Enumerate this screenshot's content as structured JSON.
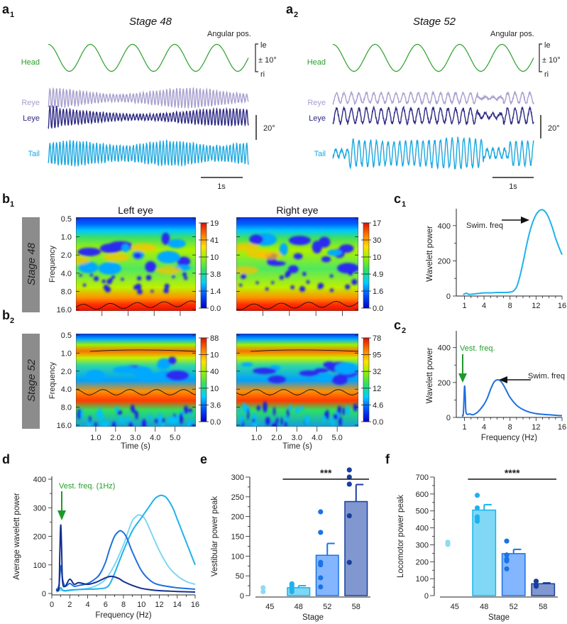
{
  "panel_a": [
    {
      "label": "a",
      "sub": "1",
      "title": "Stage 48",
      "angular_label": "Angular pos.",
      "scale_head": {
        "top": "le",
        "mid": "± 10°",
        "bottom": "ri"
      },
      "scale_eye": "20°",
      "time_bar": "1s",
      "traces": [
        {
          "name": "Head",
          "color": "#2aa02a"
        },
        {
          "name": "Reye",
          "color": "#a89fcf"
        },
        {
          "name": "Leye",
          "color": "#2e2a85"
        },
        {
          "name": "Tail",
          "color": "#1aa7e0"
        }
      ],
      "head_cycles": 5,
      "eye_freq_hz": 12,
      "tail_freq_hz": 12,
      "duration_s": 5
    },
    {
      "label": "a",
      "sub": "2",
      "title": "Stage 52",
      "angular_label": "Angular pos.",
      "scale_head": {
        "top": "le",
        "mid": "± 10°",
        "bottom": "ri"
      },
      "scale_eye": "20°",
      "time_bar": "1s",
      "traces": [
        {
          "name": "Head",
          "color": "#2aa02a"
        },
        {
          "name": "Reye",
          "color": "#a89fcf"
        },
        {
          "name": "Leye",
          "color": "#2e2a85"
        },
        {
          "name": "Tail",
          "color": "#1aa7e0"
        }
      ],
      "head_cycles": 5,
      "eye_freq_hz": 6,
      "tail_freq_hz": 6,
      "duration_s": 5
    }
  ],
  "panel_b": [
    {
      "label": "b",
      "sub": "1",
      "stage": "Stage 48",
      "heatmaps": [
        {
          "title": "Left eye",
          "colorbar": [
            "19",
            "41",
            "10",
            "3.8",
            "1.4",
            "0.0"
          ]
        },
        {
          "title": "Right eye",
          "colorbar": [
            "17",
            "30",
            "10",
            "4.9",
            "1.6",
            "0.0"
          ]
        }
      ],
      "ylabel": "Frequency",
      "yticks": [
        "0.5",
        "1.0",
        "2.0",
        "4.0",
        "8.0",
        "16.0"
      ],
      "dominant_band": "high"
    },
    {
      "label": "b",
      "sub": "2",
      "stage": "Stage 52",
      "heatmaps": [
        {
          "title": "",
          "colorbar": [
            "88",
            "10",
            "40",
            "10",
            "3.6",
            "0.0"
          ]
        },
        {
          "title": "",
          "colorbar": [
            "78",
            "95",
            "32",
            "12",
            "4.6",
            "0.0"
          ]
        }
      ],
      "ylabel": "Frequency",
      "yticks": [
        "0.5",
        "1.0",
        "2.0",
        "4.0",
        "8.0",
        "16.0"
      ],
      "xticks": [
        "1.0",
        "2.0",
        "3.0",
        "4.0",
        "5.0"
      ],
      "xlabel": "Time (s)",
      "dominant_band": "mid"
    }
  ],
  "chart_data": [
    {
      "id": "c1",
      "type": "line",
      "label": "c",
      "sub": "1",
      "xlabel": "",
      "ylabel": "Wavelett power",
      "xlim": [
        0.5,
        16
      ],
      "ylim": [
        0,
        480
      ],
      "xticks": [
        1,
        4,
        8,
        12,
        16
      ],
      "yticks": [
        0,
        200,
        400
      ],
      "annotation": "Swim. freq",
      "series": [
        {
          "name": "Stage 48",
          "color": "#1fb2ec",
          "x": [
            0.8,
            1.0,
            1.3,
            1.6,
            2,
            3,
            4,
            5,
            6,
            7,
            8,
            8.5,
            9,
            9.5,
            10,
            10.5,
            11,
            11.5,
            12,
            12.5,
            13,
            13.5,
            14,
            14.5,
            15,
            15.5,
            16
          ],
          "y": [
            8,
            12,
            16,
            10,
            10,
            14,
            18,
            18,
            20,
            20,
            22,
            28,
            50,
            110,
            190,
            280,
            360,
            420,
            462,
            485,
            490,
            475,
            440,
            390,
            330,
            280,
            235
          ]
        }
      ]
    },
    {
      "id": "c2",
      "type": "line",
      "label": "c",
      "sub": "2",
      "xlabel": "Frequency (Hz)",
      "ylabel": "Wavelett power",
      "xlim": [
        0.5,
        16
      ],
      "ylim": [
        0,
        480
      ],
      "xticks": [
        1,
        4,
        8,
        12,
        16
      ],
      "yticks": [
        0,
        200,
        400
      ],
      "annotations": [
        "Vest. freq.",
        "Swim. freq"
      ],
      "series": [
        {
          "name": "Stage 52",
          "color": "#1e6fe0",
          "x": [
            0.6,
            0.8,
            0.9,
            1.0,
            1.1,
            1.2,
            1.4,
            1.8,
            2.2,
            2.6,
            3,
            3.5,
            4,
            4.5,
            5,
            5.5,
            6,
            6.5,
            7,
            7.5,
            8,
            9,
            10,
            11,
            12,
            13,
            14,
            15,
            16
          ],
          "y": [
            10,
            15,
            90,
            178,
            140,
            40,
            18,
            20,
            15,
            20,
            30,
            50,
            75,
            110,
            160,
            200,
            215,
            210,
            185,
            150,
            115,
            70,
            45,
            30,
            22,
            18,
            15,
            12,
            10
          ]
        }
      ]
    },
    {
      "id": "d",
      "type": "line",
      "label": "d",
      "sub": "",
      "xlabel": "Frequency (Hz)",
      "ylabel": "Average wavelett power",
      "xlim": [
        0,
        16
      ],
      "ylim": [
        0,
        400
      ],
      "xticks": [
        0,
        2,
        4,
        6,
        8,
        10,
        12,
        14,
        16
      ],
      "yticks": [
        0,
        100,
        200,
        300,
        400
      ],
      "annotation": "Vest. freq. (1Hz)",
      "series": [
        {
          "name": "Stage 45",
          "color": "#7fd6f5",
          "x": [
            0.5,
            0.8,
            1.0,
            1.2,
            1.5,
            2,
            3,
            4,
            5,
            6,
            7,
            8,
            8.5,
            9,
            9.5,
            9.8,
            10.2,
            10.5,
            11,
            12,
            13,
            14,
            15,
            16
          ],
          "y": [
            5,
            10,
            12,
            10,
            8,
            10,
            14,
            18,
            28,
            50,
            100,
            170,
            215,
            255,
            272,
            275,
            268,
            255,
            220,
            150,
            95,
            62,
            42,
            32
          ]
        },
        {
          "name": "Stage 48",
          "color": "#1fb2ec",
          "x": [
            0.5,
            0.8,
            1.0,
            1.2,
            1.5,
            2,
            3,
            4,
            5,
            6,
            6.5,
            7,
            8,
            9,
            10,
            11,
            11.5,
            12,
            12.3,
            12.8,
            13.5,
            14,
            15,
            16
          ],
          "y": [
            8,
            14,
            20,
            12,
            10,
            12,
            14,
            15,
            16,
            20,
            35,
            70,
            150,
            220,
            265,
            310,
            332,
            342,
            343,
            335,
            300,
            260,
            180,
            100
          ]
        },
        {
          "name": "Stage 52",
          "color": "#1e6fe0",
          "x": [
            0.5,
            0.8,
            1.0,
            1.2,
            1.5,
            2,
            2.5,
            3,
            4,
            5,
            5.5,
            6,
            6.5,
            7,
            7.5,
            7.8,
            8.2,
            8.5,
            9,
            10,
            11,
            12,
            14,
            16
          ],
          "y": [
            10,
            30,
            97,
            50,
            25,
            35,
            25,
            28,
            35,
            55,
            75,
            110,
            160,
            200,
            218,
            218,
            205,
            185,
            145,
            80,
            45,
            30,
            20,
            15
          ]
        },
        {
          "name": "Stage 58",
          "color": "#142f8f",
          "x": [
            0.5,
            0.8,
            0.9,
            1.0,
            1.1,
            1.2,
            1.5,
            2,
            2.5,
            3,
            4,
            5,
            6,
            6.7,
            7.5,
            8,
            9,
            10,
            11,
            12,
            14,
            16
          ],
          "y": [
            15,
            20,
            150,
            240,
            150,
            40,
            25,
            50,
            32,
            38,
            32,
            40,
            55,
            60,
            52,
            42,
            28,
            18,
            13,
            10,
            7,
            5
          ]
        }
      ]
    },
    {
      "id": "e",
      "type": "bar",
      "label": "e",
      "sub": "",
      "xlabel": "Stage",
      "ylabel": "Vestibular power peak",
      "categories": [
        "45",
        "48",
        "52",
        "58"
      ],
      "ylim": [
        0,
        300
      ],
      "yticks": [
        0,
        50,
        100,
        150,
        200,
        250,
        300
      ],
      "significance": "***",
      "bars": [
        {
          "stage": "45",
          "mean": null,
          "sem": null,
          "fill": "#9fe0f7",
          "edge": "#6fd0f2",
          "points": [
            10,
            20
          ],
          "point_color": "#8fdaf5"
        },
        {
          "stage": "48",
          "mean": 20,
          "sem": 5,
          "fill": "#80d8f6",
          "edge": "#19b4ec",
          "points": [
            10,
            16,
            22,
            27,
            30
          ],
          "point_color": "#1fb2ec"
        },
        {
          "stage": "52",
          "mean": 102,
          "sem": 30,
          "fill": "#84b6ff",
          "edge": "#1a73e6",
          "points": [
            22,
            45,
            78,
            84,
            160,
            212
          ],
          "point_color": "#1a73e6"
        },
        {
          "stage": "58",
          "mean": 238,
          "sem": 43,
          "fill": "#8097d0",
          "edge": "#1a3e9c",
          "points": [
            84,
            202,
            282,
            300,
            318
          ],
          "point_color": "#1a3e9c"
        }
      ]
    },
    {
      "id": "f",
      "type": "bar",
      "label": "f",
      "sub": "",
      "xlabel": "Stage",
      "ylabel": "Locomotor power peak",
      "categories": [
        "45",
        "48",
        "52",
        "58"
      ],
      "ylim": [
        0,
        700
      ],
      "yticks": [
        0,
        100,
        200,
        300,
        400,
        500,
        600,
        700
      ],
      "significance": "****",
      "bars": [
        {
          "stage": "45",
          "mean": null,
          "sem": null,
          "fill": "#9fe0f7",
          "edge": "#6fd0f2",
          "points": [
            302,
            315
          ],
          "point_color": "#8fdaf5"
        },
        {
          "stage": "48",
          "mean": 505,
          "sem": 32,
          "fill": "#80d8f6",
          "edge": "#19b4ec",
          "points": [
            440,
            455,
            465,
            518,
            592
          ],
          "point_color": "#1fb2ec"
        },
        {
          "stage": "52",
          "mean": 248,
          "sem": 25,
          "fill": "#84b6ff",
          "edge": "#1a73e6",
          "points": [
            158,
            205,
            215,
            240,
            322
          ],
          "point_color": "#1a73e6"
        },
        {
          "stage": "58",
          "mean": 70,
          "sem": 5,
          "fill": "#8097d0",
          "edge": "#1a3e9c",
          "points": [
            55,
            65,
            85
          ],
          "point_color": "#1a3e9c"
        }
      ]
    }
  ]
}
